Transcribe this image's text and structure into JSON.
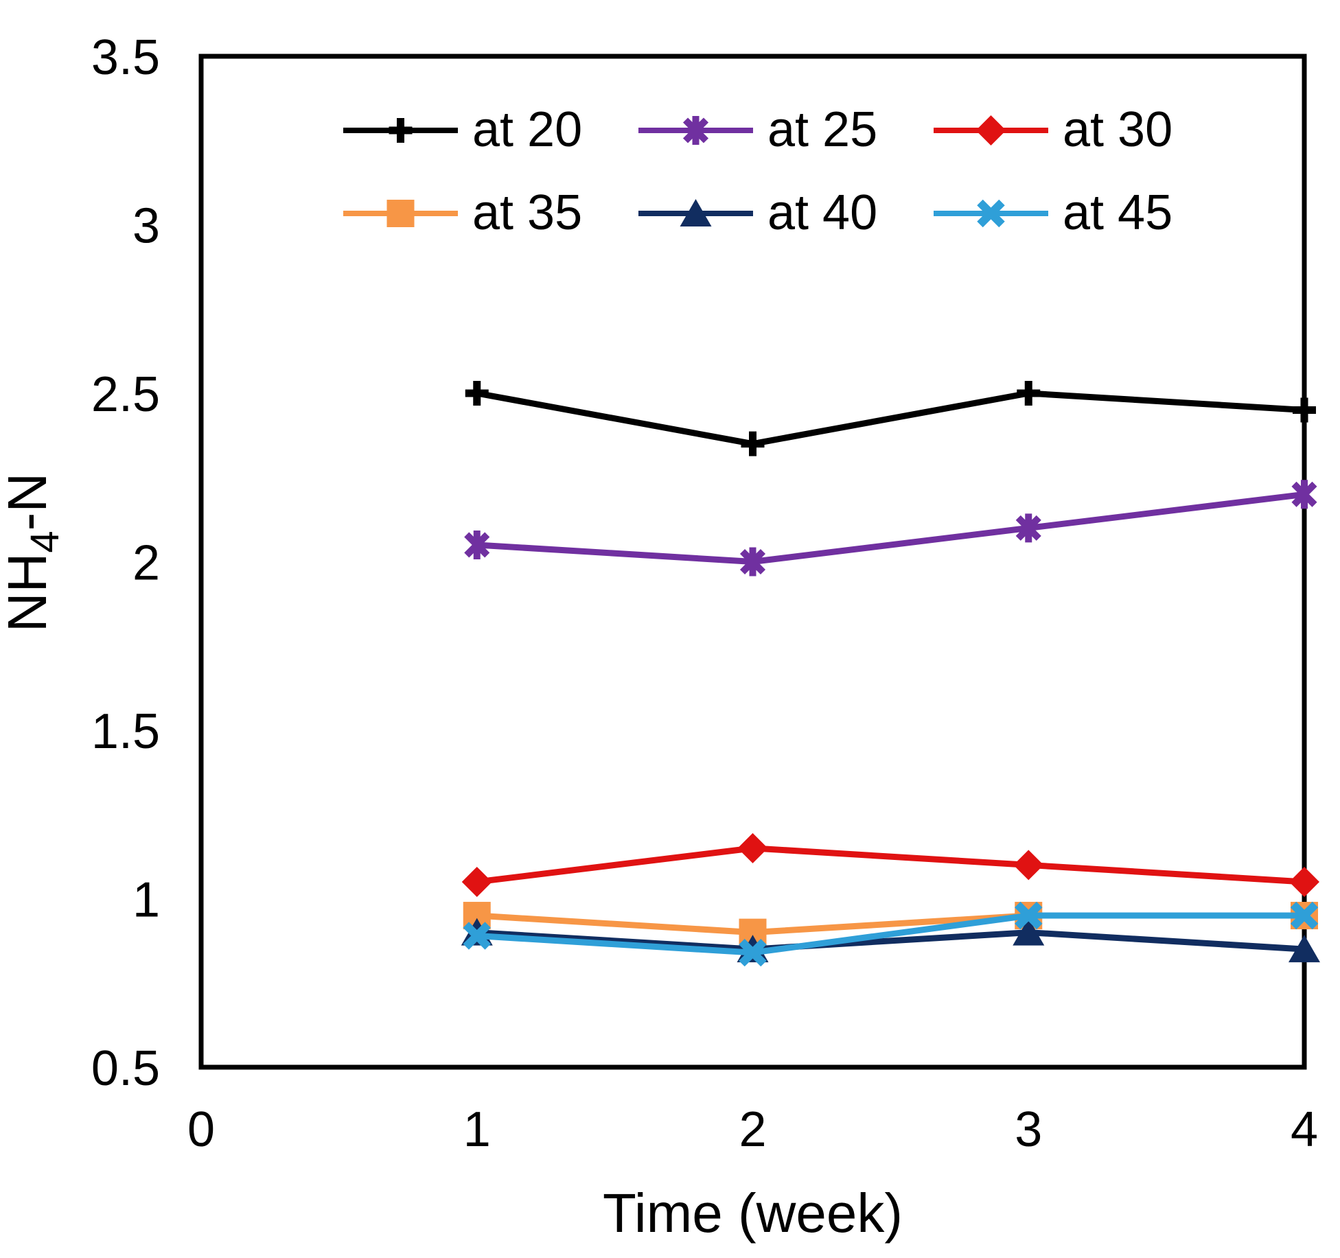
{
  "figure": {
    "background": "#FFFFFF",
    "frame_color": "#000000"
  },
  "chart_data": {
    "type": "line",
    "title": "",
    "xlabel": "Time (week)",
    "ylabel": {
      "prefix": "NH",
      "sub": "4",
      "suffix": "-N"
    },
    "xlim": [
      0,
      4
    ],
    "ylim": [
      0.5,
      3.5
    ],
    "x_ticks": [
      "0",
      "1",
      "2",
      "3",
      "4"
    ],
    "y_ticks": [
      "0.5",
      "1",
      "1.5",
      "2",
      "2.5",
      "3",
      "3.5"
    ],
    "grid": false,
    "legend_position": "top-inside",
    "legend_rows": [
      [
        "at 20",
        "at 25",
        "at 30"
      ],
      [
        "at 35",
        "at 40",
        "at 45"
      ]
    ],
    "x": [
      1,
      2,
      3,
      4
    ],
    "series": [
      {
        "name": "at 20",
        "color": "#000000",
        "marker": "plus",
        "values": [
          2.5,
          2.35,
          2.5,
          2.45
        ]
      },
      {
        "name": "at 25",
        "color": "#7030A0",
        "marker": "asterisk",
        "values": [
          2.05,
          2.0,
          2.1,
          2.2
        ]
      },
      {
        "name": "at 30",
        "color": "#E01212",
        "marker": "diamond",
        "values": [
          1.05,
          1.15,
          1.1,
          1.05
        ]
      },
      {
        "name": "at 35",
        "color": "#F79646",
        "marker": "square",
        "values": [
          0.95,
          0.9,
          0.95,
          0.95
        ]
      },
      {
        "name": "at 40",
        "color": "#112D60",
        "marker": "triangle",
        "values": [
          0.9,
          0.85,
          0.9,
          0.85
        ]
      },
      {
        "name": "at 45",
        "color": "#2F9FD8",
        "marker": "x",
        "values": [
          0.89,
          0.84,
          0.95,
          0.95
        ]
      }
    ]
  }
}
